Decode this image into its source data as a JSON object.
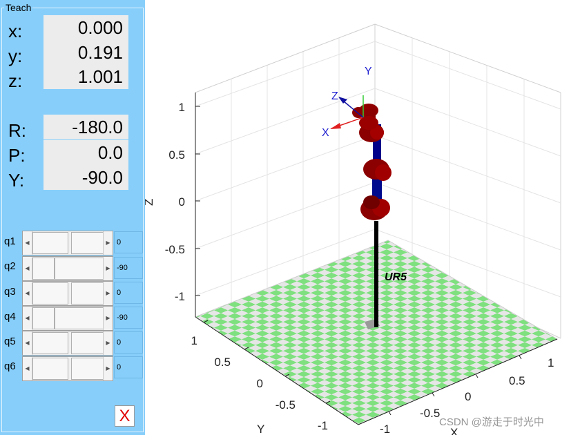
{
  "teach_panel": {
    "title": "Teach",
    "position": [
      {
        "label": "x:",
        "value": "0.000"
      },
      {
        "label": "y:",
        "value": "0.191"
      },
      {
        "label": "z:",
        "value": "1.001"
      }
    ],
    "orientation": [
      {
        "label": "R:",
        "value": "-180.0"
      },
      {
        "label": "P:",
        "value": "0.0"
      },
      {
        "label": "Y:",
        "value": "-90.0"
      }
    ],
    "joints": [
      {
        "label": "q1",
        "value": "0",
        "level": 0.5
      },
      {
        "label": "q2",
        "value": "-90",
        "level": 0.25
      },
      {
        "label": "q3",
        "value": "0",
        "level": 0.5
      },
      {
        "label": "q4",
        "value": "-90",
        "level": 0.25
      },
      {
        "label": "q5",
        "value": "0",
        "level": 0.5
      },
      {
        "label": "q6",
        "value": "0",
        "level": 0.5
      }
    ],
    "close_label": "X"
  },
  "plot": {
    "robot_name": "UR5",
    "z_axis_label": "Z",
    "x_axis_label": "X",
    "y_axis_label": "Y",
    "z_ticks": [
      "1",
      "0.5",
      "0",
      "-0.5",
      "-1"
    ],
    "y_ticks": [
      "1",
      "0.5",
      "0",
      "-0.5",
      "-1"
    ],
    "x_ticks": [
      "1",
      "0.5",
      "0",
      "-0.5",
      "-1"
    ],
    "frame_labels": {
      "x": "X",
      "y": "Y",
      "z": "Z"
    },
    "colors": {
      "link": "#00008b",
      "joint": "#8b0000",
      "floor_a": "#7ee07e",
      "floor_b": "#e6e6e6"
    }
  },
  "watermark": "CSDN @游走于时光中"
}
